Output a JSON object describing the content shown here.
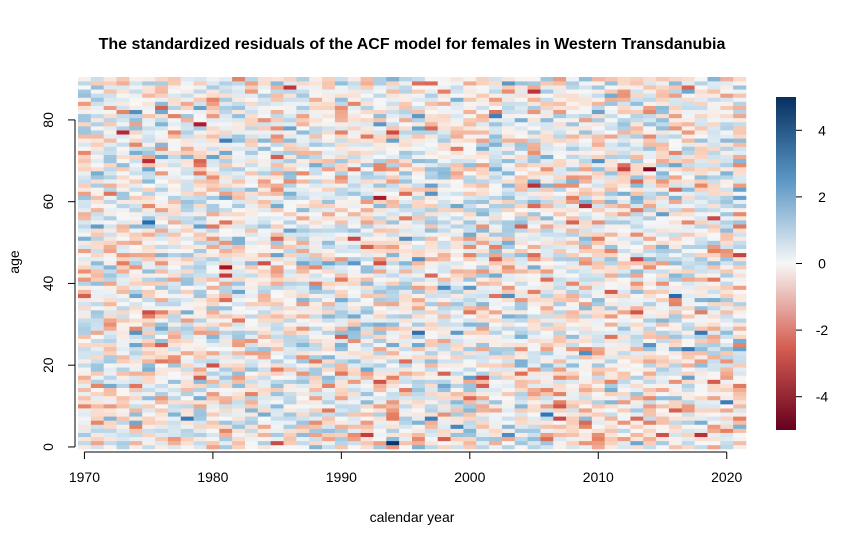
{
  "chart_data": {
    "type": "heatmap",
    "title": "The standardized residuals of the ACF model for females in Western Transdanubia",
    "xlabel": "calendar year",
    "ylabel": "age",
    "x_range": [
      1970,
      2021
    ],
    "y_range": [
      0,
      90
    ],
    "xlim": [
      1969.5,
      2021.5
    ],
    "ylim": [
      -0.5,
      90.5
    ],
    "x_ticks": [
      1970,
      1980,
      1990,
      2000,
      2010,
      2020
    ],
    "y_ticks": [
      0,
      20,
      40,
      60,
      80
    ],
    "color_scale": {
      "min": -5,
      "max": 5,
      "ticks": [
        -4,
        -2,
        0,
        2,
        4
      ],
      "low_color": "#67001f",
      "mid_color": "#f7f7f7",
      "high_color": "#053061"
    },
    "notable_cells": [
      {
        "year": 1994,
        "age": 1,
        "value": 4.8
      },
      {
        "year": 2014,
        "age": 68,
        "value": -4.5
      },
      {
        "year": 1979,
        "age": 79,
        "value": -3.5
      },
      {
        "year": 2005,
        "age": 64,
        "value": -3.2
      },
      {
        "year": 1975,
        "age": 55,
        "value": 3.4
      },
      {
        "year": 2012,
        "age": 68,
        "value": -2.9
      },
      {
        "year": 1997,
        "age": 7,
        "value": 3.0
      },
      {
        "year": 2006,
        "age": 8,
        "value": 3.2
      },
      {
        "year": 2017,
        "age": 24,
        "value": 3.1
      },
      {
        "year": 1996,
        "age": 28,
        "value": 3.3
      },
      {
        "year": 2002,
        "age": 81,
        "value": 3.0
      },
      {
        "year": 1981,
        "age": 42,
        "value": -3.0
      },
      {
        "year": 1986,
        "age": 88,
        "value": -3.1
      },
      {
        "year": 2019,
        "age": 56,
        "value": -2.8
      },
      {
        "year": 2021,
        "age": 47,
        "value": -2.9
      }
    ]
  }
}
